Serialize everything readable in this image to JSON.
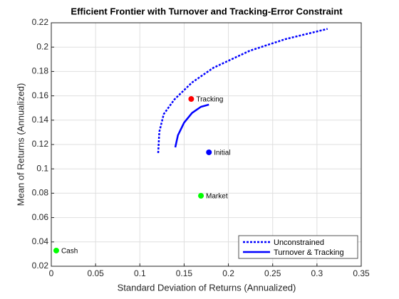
{
  "chart_data": {
    "type": "line",
    "title": "Efficient Frontier with Turnover and Tracking-Error Constraint",
    "xlabel": "Standard Deviation of Returns (Annualized)",
    "ylabel": "Mean of Returns (Annualized)",
    "xlim": [
      0,
      0.35
    ],
    "xticks": [
      0,
      0.05,
      0.1,
      0.15,
      0.2,
      0.25,
      0.3,
      0.35
    ],
    "ylim": [
      0.02,
      0.22
    ],
    "yticks": [
      0.02,
      0.04,
      0.06,
      0.08,
      0.1,
      0.12,
      0.14,
      0.16,
      0.18,
      0.2,
      0.22
    ],
    "grid": true,
    "legend_location": "southeast",
    "series": [
      {
        "name": "Unconstrained",
        "color": "#0000ff",
        "style": "dotted",
        "x": [
          0.1207,
          0.122,
          0.127,
          0.139,
          0.159,
          0.183,
          0.224,
          0.264,
          0.312
        ],
        "values": [
          0.113,
          0.1305,
          0.145,
          0.157,
          0.171,
          0.183,
          0.197,
          0.2065,
          0.215
        ]
      },
      {
        "name": "Turnover & Tracking",
        "color": "#0000ff",
        "style": "solid",
        "x": [
          0.14,
          0.143,
          0.15,
          0.159,
          0.169,
          0.178
        ],
        "values": [
          0.1177,
          0.1276,
          0.138,
          0.146,
          0.151,
          0.1528
        ]
      }
    ],
    "points": [
      {
        "label": "Tracking",
        "color": "#ff0000",
        "x": 0.158,
        "y": 0.1574
      },
      {
        "label": "Initial",
        "color": "#0000ff",
        "x": 0.178,
        "y": 0.1136
      },
      {
        "label": "Market",
        "color": "#00ff00",
        "x": 0.169,
        "y": 0.0779
      },
      {
        "label": "Cash",
        "color": "#00ff00",
        "x": 0.0056,
        "y": 0.0329
      }
    ]
  }
}
